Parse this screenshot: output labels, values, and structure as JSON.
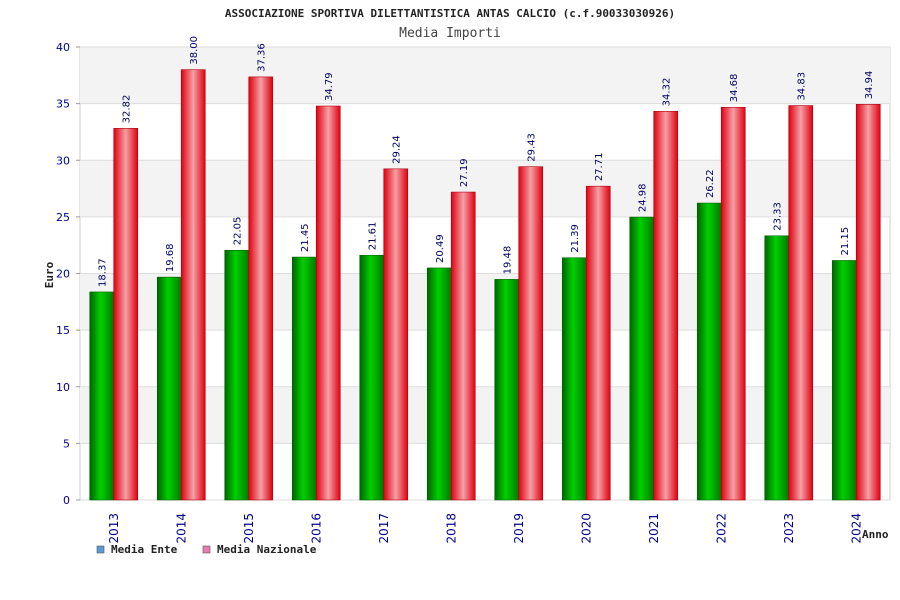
{
  "chart_data": {
    "type": "bar",
    "title": "ASSOCIAZIONE SPORTIVA DILETTANTISTICA ANTAS CALCIO (c.f.90033030926)",
    "subtitle": "Media Importi",
    "xlabel": "Anno",
    "ylabel": "Euro",
    "ylim": [
      0,
      40
    ],
    "yticks": [
      0,
      5,
      10,
      15,
      20,
      25,
      30,
      35,
      40
    ],
    "grid": true,
    "legend_position": "bottom-left",
    "categories": [
      "2013",
      "2014",
      "2015",
      "2016",
      "2017",
      "2018",
      "2019",
      "2020",
      "2021",
      "2022",
      "2023",
      "2024"
    ],
    "series": [
      {
        "name": "Media Ente",
        "legend_color": "#5b9bd5",
        "color": "#00a000",
        "values": [
          18.37,
          19.68,
          22.05,
          21.45,
          21.61,
          20.49,
          19.48,
          21.39,
          24.98,
          26.22,
          23.33,
          21.15
        ],
        "labels": [
          "18.37",
          "19.68",
          "22.05",
          "21.45",
          "21.61",
          "20.49",
          "19.48",
          "21.39",
          "24.98",
          "26.22",
          "23.33",
          "21.15"
        ]
      },
      {
        "name": "Media Nazionale",
        "legend_color": "#e87cb0",
        "color": "#e8101e",
        "values": [
          32.82,
          38.0,
          37.36,
          34.79,
          29.24,
          27.19,
          29.43,
          27.71,
          34.32,
          34.68,
          34.83,
          34.94
        ],
        "labels": [
          "32.82",
          "38.00",
          "37.36",
          "34.79",
          "29.24",
          "27.19",
          "29.43",
          "27.71",
          "34.32",
          "34.68",
          "34.83",
          "34.94"
        ]
      }
    ]
  }
}
